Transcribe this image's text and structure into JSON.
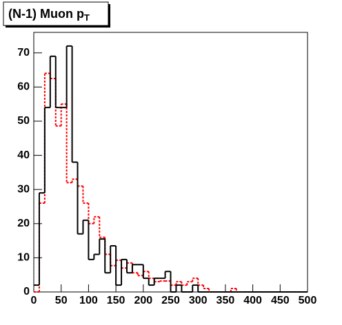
{
  "chart_data": {
    "type": "histogram",
    "title": "(N-1) Muon p",
    "title_subscript": "T",
    "bins": [
      0,
      10,
      20,
      30,
      40,
      50,
      60,
      70,
      80,
      90,
      100,
      110,
      120,
      130,
      140,
      150,
      160,
      170,
      180,
      190,
      200,
      210,
      220,
      230,
      240,
      250,
      260,
      270,
      280,
      290,
      300,
      310,
      320,
      330,
      340,
      350,
      360,
      370,
      380,
      390,
      400,
      410,
      420,
      430,
      440,
      450,
      460,
      470,
      480,
      490,
      500
    ],
    "series": [
      {
        "color": "#ff0000",
        "line_style": "dotted",
        "values": [
          0,
          26,
          64,
          62.5,
          48.6,
          55,
          32,
          33,
          31,
          26,
          20,
          22,
          16,
          11,
          7.7,
          9.3,
          7,
          8.5,
          5.6,
          4.8,
          6,
          4,
          3,
          3.2,
          3.2,
          2,
          3,
          2,
          3,
          4,
          2,
          1,
          0,
          0,
          0,
          0,
          1,
          0,
          0,
          0,
          0,
          0,
          0,
          0,
          0,
          0,
          0,
          0,
          0,
          0
        ]
      },
      {
        "color": "#000000",
        "line_style": "solid",
        "values": [
          2,
          29,
          54,
          69,
          54,
          54,
          72,
          38,
          17,
          21,
          9.5,
          11,
          15.5,
          5.6,
          13.5,
          2,
          9.5,
          5.6,
          8,
          8,
          4,
          2,
          4,
          4,
          6,
          0,
          2,
          0,
          0,
          2,
          0,
          0,
          0,
          0,
          0,
          0,
          0,
          0,
          0,
          0,
          0,
          0,
          0,
          0,
          0,
          0,
          0,
          0,
          0,
          0
        ]
      }
    ],
    "xlim": [
      0,
      500
    ],
    "xticks": [
      0,
      50,
      100,
      150,
      200,
      250,
      300,
      350,
      400,
      450,
      500
    ],
    "ylim": [
      0,
      76
    ],
    "yticks": [
      0,
      10,
      20,
      30,
      40,
      50,
      60,
      70
    ]
  }
}
